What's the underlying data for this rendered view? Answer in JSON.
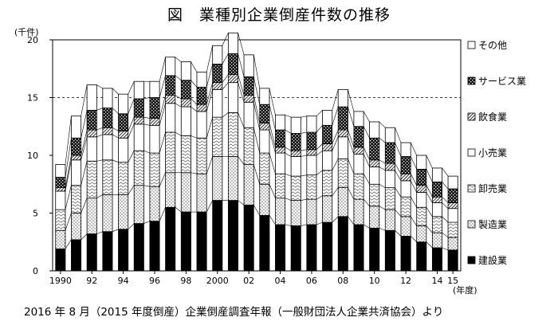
{
  "title": "図　業種別企業倒産件数の推移",
  "source": "2016 年 8 月（2015 年度倒産）企業倒産調査年報（一般財団法人企業共済協会）より",
  "chart_data": {
    "type": "bar",
    "stacked": true,
    "title": "図　業種別企業倒産件数の推移",
    "ylabel": "(千件)",
    "xlabel": "(年度)",
    "ylim": [
      0,
      20
    ],
    "yticks": [
      0,
      5,
      10,
      15,
      20
    ],
    "grid": "dashed horizontal at 15",
    "legend_position": "right",
    "x_tick_labels": [
      {
        "year": 1990,
        "label": "1990"
      },
      {
        "year": 1992,
        "label": "92"
      },
      {
        "year": 1994,
        "label": "94"
      },
      {
        "year": 1996,
        "label": "96"
      },
      {
        "year": 1998,
        "label": "98"
      },
      {
        "year": 2000,
        "label": "2000"
      },
      {
        "year": 2002,
        "label": "02"
      },
      {
        "year": 2004,
        "label": "04"
      },
      {
        "year": 2006,
        "label": "06"
      },
      {
        "year": 2008,
        "label": "08"
      },
      {
        "year": 2010,
        "label": "10"
      },
      {
        "year": 2012,
        "label": "12"
      },
      {
        "year": 2014,
        "label": "14"
      },
      {
        "year": 2015,
        "label": "15"
      }
    ],
    "categories": [
      1990,
      1991,
      1992,
      1993,
      1994,
      1995,
      1996,
      1997,
      1998,
      1999,
      2000,
      2001,
      2002,
      2003,
      2004,
      2005,
      2006,
      2007,
      2008,
      2009,
      2010,
      2011,
      2012,
      2013,
      2014,
      2015
    ],
    "series": [
      {
        "name": "建設業",
        "pattern": "solid-black",
        "values": [
          1.9,
          2.7,
          3.2,
          3.4,
          3.6,
          4.1,
          4.3,
          5.5,
          5.1,
          5.1,
          6.1,
          6.1,
          5.7,
          4.8,
          4.0,
          3.9,
          4.0,
          4.2,
          4.7,
          4.0,
          3.7,
          3.5,
          3.0,
          2.5,
          2.0,
          1.8
        ]
      },
      {
        "name": "製造業",
        "pattern": "dots",
        "values": [
          1.6,
          2.3,
          3.1,
          3.2,
          3.0,
          3.3,
          3.0,
          3.0,
          3.4,
          3.3,
          3.8,
          3.8,
          3.5,
          2.7,
          2.3,
          2.2,
          2.2,
          2.3,
          2.5,
          2.2,
          1.9,
          1.8,
          1.7,
          1.4,
          1.3,
          1.1
        ]
      },
      {
        "name": "卸売業",
        "pattern": "wave",
        "values": [
          1.8,
          2.4,
          3.2,
          3.0,
          2.8,
          3.0,
          2.9,
          3.5,
          3.2,
          3.1,
          3.4,
          3.8,
          3.2,
          2.7,
          2.1,
          2.1,
          2.1,
          2.2,
          2.5,
          2.2,
          1.9,
          1.9,
          1.7,
          1.6,
          1.4,
          1.3
        ]
      },
      {
        "name": "小売業",
        "pattern": "white",
        "values": [
          1.6,
          2.2,
          2.1,
          2.2,
          2.1,
          2.3,
          2.4,
          2.5,
          2.5,
          2.3,
          2.4,
          2.6,
          2.2,
          2.0,
          1.8,
          1.7,
          1.7,
          1.7,
          1.9,
          1.7,
          1.5,
          1.5,
          1.4,
          1.3,
          1.2,
          1.2
        ]
      },
      {
        "name": "飲食業",
        "pattern": "diagonal",
        "values": [
          0.3,
          0.4,
          0.6,
          0.6,
          0.6,
          0.6,
          0.6,
          0.7,
          0.7,
          0.6,
          0.6,
          0.7,
          0.6,
          0.6,
          0.5,
          0.5,
          0.5,
          0.6,
          0.6,
          0.6,
          0.6,
          0.6,
          0.6,
          0.6,
          0.5,
          0.5
        ]
      },
      {
        "name": "サービス業",
        "pattern": "dark-checker",
        "values": [
          0.9,
          1.5,
          1.7,
          1.7,
          1.5,
          1.6,
          1.8,
          1.7,
          1.6,
          1.5,
          1.6,
          1.8,
          1.6,
          1.6,
          1.5,
          1.5,
          1.5,
          1.6,
          2.0,
          1.8,
          1.9,
          1.8,
          1.5,
          1.4,
          1.3,
          1.2
        ]
      },
      {
        "name": "その他",
        "pattern": "white",
        "values": [
          1.1,
          1.9,
          2.2,
          1.7,
          1.7,
          1.5,
          1.4,
          1.6,
          1.6,
          1.3,
          1.6,
          1.8,
          1.9,
          1.4,
          1.3,
          1.4,
          1.4,
          1.3,
          1.5,
          1.3,
          1.4,
          1.3,
          1.2,
          1.2,
          1.2,
          1.1
        ]
      }
    ]
  }
}
